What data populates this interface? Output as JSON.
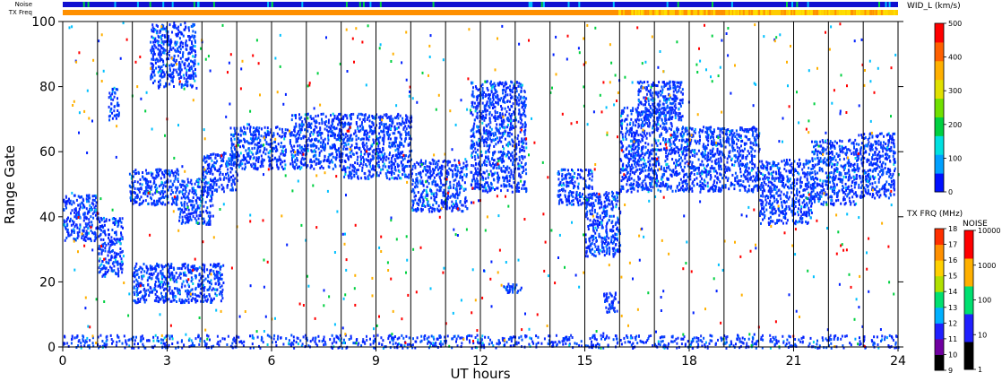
{
  "chart_data": {
    "type": "heatmap",
    "xlabel": "UT hours",
    "ylabel": "Range Gate",
    "xlim": [
      0,
      24
    ],
    "ylim": [
      0,
      100
    ],
    "x_ticks": [
      "0",
      "3",
      "6",
      "9",
      "12",
      "15",
      "18",
      "21",
      "24"
    ],
    "y_ticks": [
      "0",
      "20",
      "40",
      "60",
      "80",
      "100"
    ],
    "grid": "vertical lines every hour",
    "status_bars": {
      "noise_label": "Noise",
      "txfreq_label": "TX Freq"
    },
    "colorbars": {
      "width": {
        "title": "WID_L (km/s)",
        "ticks": [
          "0",
          "100",
          "200",
          "300",
          "400",
          "500"
        ],
        "colors": [
          "#0010ff",
          "#00a0ff",
          "#00e0e0",
          "#00d040",
          "#70e000",
          "#e0e000",
          "#ffb000",
          "#ff6000",
          "#ff0000"
        ]
      },
      "txfreq": {
        "title": "TX FRQ (MHz)",
        "ticks": [
          "9",
          "10",
          "11",
          "12",
          "13",
          "14",
          "15",
          "16",
          "17",
          "18"
        ],
        "colors": [
          "#000000",
          "#7000a0",
          "#2020ff",
          "#00b0ff",
          "#00e070",
          "#b0e000",
          "#ffd000",
          "#ff9000",
          "#ff3000"
        ]
      },
      "noise": {
        "title": "NOISE",
        "ticks": [
          "1",
          "10",
          "100",
          "1000",
          "10000"
        ],
        "colors": [
          "#000000",
          "#2020ff",
          "#00e070",
          "#ffb000",
          "#ff0000"
        ]
      }
    },
    "bands": [
      {
        "t": [
          0.0,
          1.0
        ],
        "gates": [
          33,
          47
        ]
      },
      {
        "t": [
          1.0,
          1.7
        ],
        "gates": [
          22,
          40
        ]
      },
      {
        "t": [
          1.3,
          1.6
        ],
        "gates": [
          70,
          80
        ]
      },
      {
        "t": [
          1.9,
          3.3
        ],
        "gates": [
          44,
          55
        ]
      },
      {
        "t": [
          3.3,
          4.3
        ],
        "gates": [
          38,
          52
        ]
      },
      {
        "t": [
          4.0,
          5.0
        ],
        "gates": [
          48,
          60
        ]
      },
      {
        "t": [
          2.0,
          4.6
        ],
        "gates": [
          14,
          26
        ]
      },
      {
        "t": [
          2.5,
          3.8
        ],
        "gates": [
          80,
          100
        ]
      },
      {
        "t": [
          4.8,
          6.4
        ],
        "gates": [
          55,
          68
        ]
      },
      {
        "t": [
          6.5,
          8.0
        ],
        "gates": [
          55,
          72
        ]
      },
      {
        "t": [
          8.0,
          10.0
        ],
        "gates": [
          52,
          72
        ]
      },
      {
        "t": [
          10.0,
          11.6
        ],
        "gates": [
          42,
          58
        ]
      },
      {
        "t": [
          11.7,
          13.3
        ],
        "gates": [
          48,
          82
        ]
      },
      {
        "t": [
          12.6,
          13.2
        ],
        "gates": [
          17,
          20
        ]
      },
      {
        "t": [
          14.2,
          15.2
        ],
        "gates": [
          44,
          55
        ]
      },
      {
        "t": [
          15.0,
          16.0
        ],
        "gates": [
          28,
          48
        ]
      },
      {
        "t": [
          15.5,
          16.0
        ],
        "gates": [
          11,
          17
        ]
      },
      {
        "t": [
          16.0,
          17.5
        ],
        "gates": [
          48,
          74
        ]
      },
      {
        "t": [
          16.5,
          17.8
        ],
        "gates": [
          70,
          82
        ]
      },
      {
        "t": [
          17.5,
          20.0
        ],
        "gates": [
          48,
          68
        ]
      },
      {
        "t": [
          20.0,
          21.5
        ],
        "gates": [
          38,
          58
        ]
      },
      {
        "t": [
          21.5,
          22.8
        ],
        "gates": [
          44,
          64
        ]
      },
      {
        "t": [
          22.8,
          23.9
        ],
        "gates": [
          46,
          66
        ]
      },
      {
        "t": [
          0.0,
          24.0
        ],
        "gates": [
          0,
          4
        ]
      }
    ]
  }
}
